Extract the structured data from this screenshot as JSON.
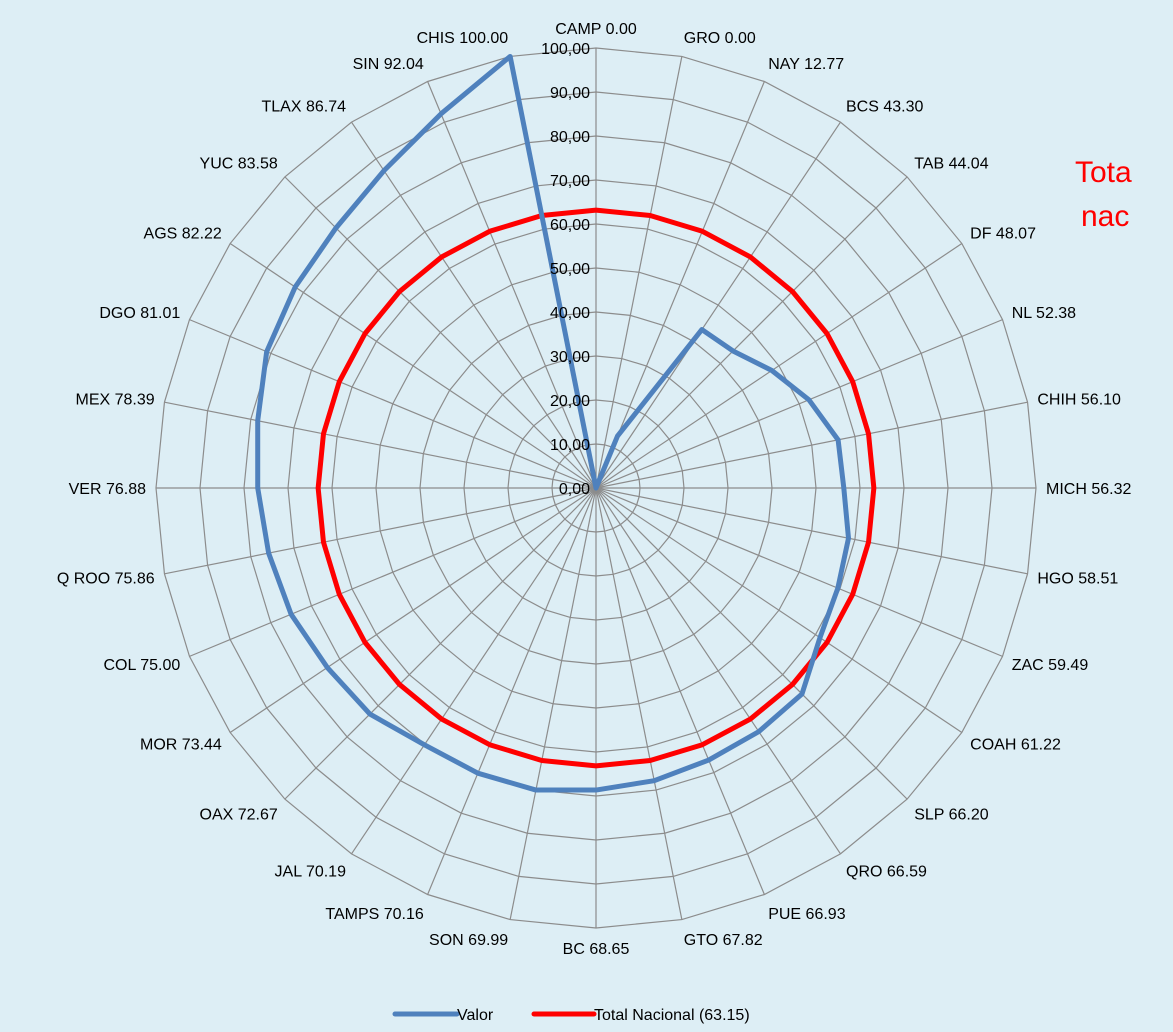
{
  "chart_data": {
    "type": "radar",
    "categories": [
      "CAMP 0.00",
      "GRO 0.00",
      "NAY 12.77",
      "BCS 43.30",
      "TAB 44.04",
      "DF 48.07",
      "NL 52.38",
      "CHIH 56.10",
      "MICH 56.32",
      "HGO 58.51",
      "ZAC 59.49",
      "COAH 61.22",
      "SLP 66.20",
      "QRO 66.59",
      "PUE 66.93",
      "GTO 67.82",
      "BC 68.65",
      "SON 69.99",
      "TAMPS 70.16",
      "JAL 70.19",
      "OAX 72.67",
      "MOR 73.44",
      "COL 75.00",
      "Q ROO 75.86",
      "VER 76.88",
      "MEX 78.39",
      "DGO 81.01",
      "AGS 82.22",
      "YUC 83.58",
      "TLAX 86.74",
      "SIN 92.04",
      "CHIS 100.00"
    ],
    "series": [
      {
        "name": "Valor",
        "color": "#4f81bd",
        "values": [
          0.0,
          0.0,
          12.77,
          43.3,
          44.04,
          48.07,
          52.38,
          56.1,
          56.32,
          58.51,
          59.49,
          61.22,
          66.2,
          66.59,
          66.93,
          67.82,
          68.65,
          69.99,
          70.16,
          70.19,
          72.67,
          73.44,
          75.0,
          75.86,
          76.88,
          78.39,
          81.01,
          82.22,
          83.58,
          86.74,
          92.04,
          100.0
        ]
      },
      {
        "name": "Total Nacional (63.15)",
        "color": "#ff0000",
        "values": [
          63.15,
          63.15,
          63.15,
          63.15,
          63.15,
          63.15,
          63.15,
          63.15,
          63.15,
          63.15,
          63.15,
          63.15,
          63.15,
          63.15,
          63.15,
          63.15,
          63.15,
          63.15,
          63.15,
          63.15,
          63.15,
          63.15,
          63.15,
          63.15,
          63.15,
          63.15,
          63.15,
          63.15,
          63.15,
          63.15,
          63.15,
          63.15
        ]
      }
    ],
    "radial_ticks": [
      "0,00",
      "10,00",
      "20,00",
      "30,00",
      "40,00",
      "50,00",
      "60,00",
      "70,00",
      "80,00",
      "90,00",
      "100,00"
    ],
    "rlim": [
      0,
      100
    ],
    "legend_position": "bottom",
    "side_note": [
      "Tota",
      "nac"
    ]
  }
}
